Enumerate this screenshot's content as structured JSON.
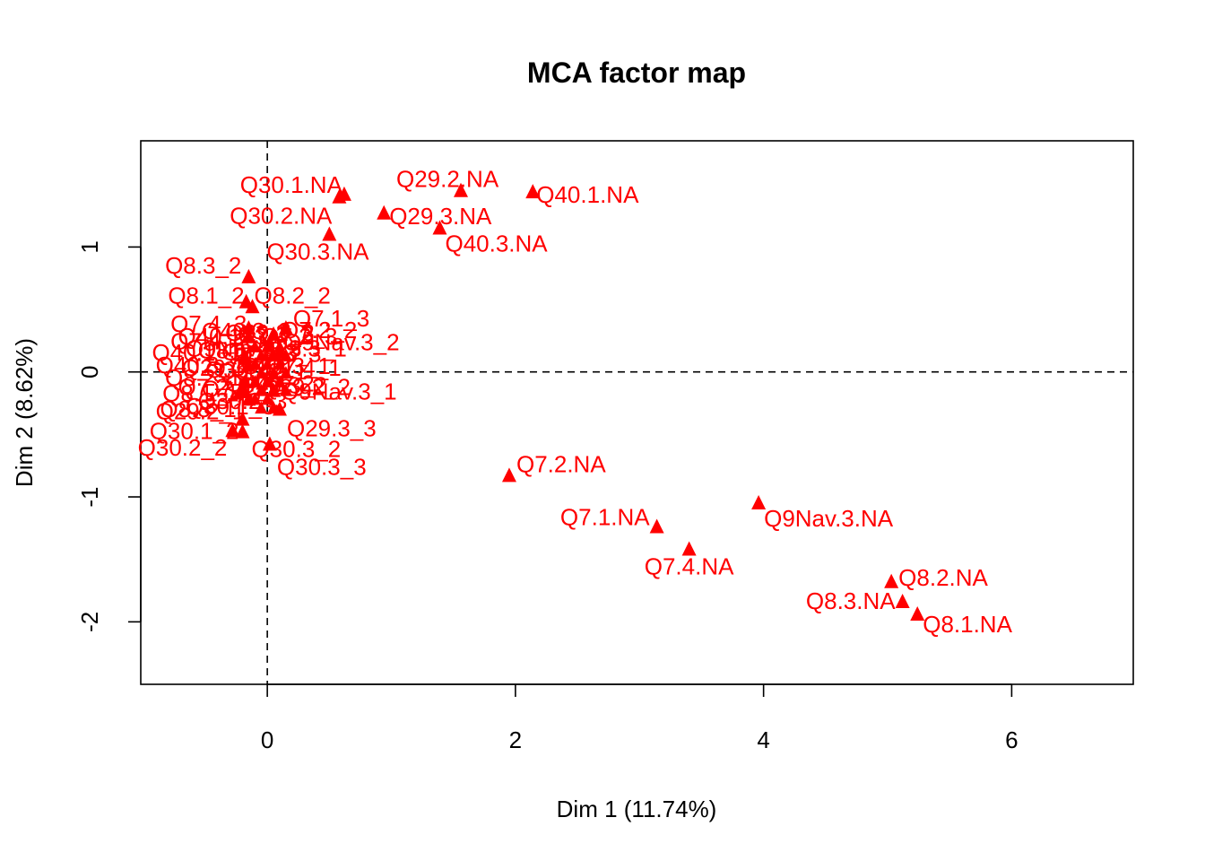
{
  "chart_data": {
    "type": "scatter",
    "title": "MCA factor map",
    "xlabel": "Dim 1 (11.74%)",
    "ylabel": "Dim 2 (8.62%)",
    "xlim": [
      -1.02,
      6.98
    ],
    "ylim": [
      -2.5,
      1.85
    ],
    "xticks": [
      0,
      2,
      4,
      6
    ],
    "yticks": [
      -2,
      -1,
      0,
      1
    ],
    "reference_lines": {
      "x": 0,
      "y": 0,
      "style": "dashed"
    },
    "marker": "triangle",
    "color": "#ff0000",
    "points": [
      {
        "label": "Q30.1.NA",
        "x": 0.62,
        "y": 1.42
      },
      {
        "label": "Q30.2.NA",
        "x": 0.58,
        "y": 1.4
      },
      {
        "label": "Q29.2.NA",
        "x": 1.56,
        "y": 1.45
      },
      {
        "label": "Q40.1.NA",
        "x": 2.14,
        "y": 1.44
      },
      {
        "label": "Q29.3.NA",
        "x": 0.94,
        "y": 1.27
      },
      {
        "label": "Q40.3.NA",
        "x": 1.39,
        "y": 1.15
      },
      {
        "label": "Q30.3.NA",
        "x": 0.5,
        "y": 1.1
      },
      {
        "label": "Q8.3_2",
        "x": -0.15,
        "y": 0.76
      },
      {
        "label": "Q8.1_2",
        "x": -0.17,
        "y": 0.56
      },
      {
        "label": "Q8.2_2",
        "x": -0.12,
        "y": 0.52
      },
      {
        "label": "Q7.1_3",
        "x": 0.15,
        "y": 0.35
      },
      {
        "label": "Q7.4_3",
        "x": -0.15,
        "y": 0.35
      },
      {
        "label": "Q7.4_2",
        "x": -0.15,
        "y": 0.28
      },
      {
        "label": "Q7.2_2",
        "x": 0.05,
        "y": 0.3
      },
      {
        "label": "Q9Nav.3_2",
        "x": 0.1,
        "y": 0.16
      },
      {
        "label": "Q40.1_1",
        "x": -0.18,
        "y": 0.12
      },
      {
        "label": "Q40.3_1",
        "x": -0.15,
        "y": 0.05
      },
      {
        "label": "Q8.2_1",
        "x": -0.18,
        "y": -0.08
      },
      {
        "label": "Q8.1_1",
        "x": -0.2,
        "y": -0.12
      },
      {
        "label": "Q8.3_1",
        "x": -0.22,
        "y": -0.16
      },
      {
        "label": "Q9Nav.3_1",
        "x": 0.05,
        "y": -0.15
      },
      {
        "label": "Q29.2_1",
        "x": -0.15,
        "y": -0.22
      },
      {
        "label": "Q29.3_3",
        "x": 0.1,
        "y": -0.3
      },
      {
        "label": "Q30.1_2",
        "x": -0.2,
        "y": -0.38
      },
      {
        "label": "Q30.2_2",
        "x": -0.28,
        "y": -0.47
      },
      {
        "label": "Q30.3_2",
        "x": -0.2,
        "y": -0.48
      },
      {
        "label": "Q30.3_3",
        "x": 0.02,
        "y": -0.58
      },
      {
        "label": "Q7.2.NA",
        "x": 1.95,
        "y": -0.83
      },
      {
        "label": "Q7.1.NA",
        "x": 3.14,
        "y": -1.24
      },
      {
        "label": "Q9Nav.3.NA",
        "x": 3.96,
        "y": -1.05
      },
      {
        "label": "Q7.4.NA",
        "x": 3.4,
        "y": -1.42
      },
      {
        "label": "Q8.2.NA",
        "x": 5.03,
        "y": -1.68
      },
      {
        "label": "Q8.3.NA",
        "x": 5.12,
        "y": -1.84
      },
      {
        "label": "Q8.1.NA",
        "x": 5.24,
        "y": -1.94
      }
    ]
  },
  "overlap_labels": [
    "Q40.1_3",
    "Q40.3_3",
    "Q29.2_3",
    "Q7.1_2",
    "Q7.2_3",
    "Q9Nav.3_3",
    "Q8.1_3",
    "Q8.2_3",
    "Q8.3_3",
    "Q29.3_1",
    "Q29.3_2",
    "Q30.1_1",
    "Q30.2_1",
    "Q30.3_1",
    "Q7.4_1",
    "Q7.2_1",
    "Q7.1_1",
    "Q40.1_2",
    "Q40.3_2",
    "Q29.2_2",
    "Q30.1_3",
    "Q30.2_3"
  ]
}
